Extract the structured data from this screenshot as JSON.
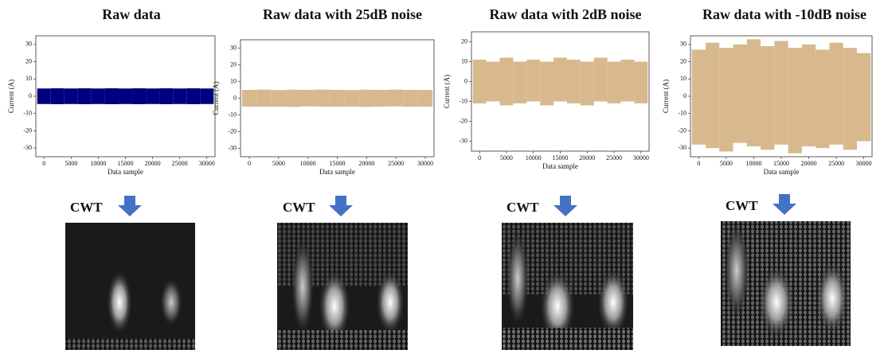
{
  "chart_data": [
    {
      "type": "range",
      "title": "Raw data",
      "xlabel": "Data sample",
      "ylabel": "Current (A)",
      "color": "#00007f",
      "x": [
        0,
        2500,
        5000,
        7500,
        10000,
        12500,
        15000,
        17500,
        20000,
        22500,
        25000,
        27500,
        30000
      ],
      "high": [
        4.5,
        4.6,
        4.5,
        4.6,
        4.5,
        4.6,
        4.5,
        4.6,
        4.5,
        4.6,
        4.5,
        4.6,
        4.5
      ],
      "low": [
        -4.5,
        -4.6,
        -4.5,
        -4.6,
        -4.5,
        -4.6,
        -4.5,
        -4.6,
        -4.5,
        -4.6,
        -4.5,
        -4.6,
        -4.5
      ],
      "xlim": [
        -1500,
        31500
      ],
      "xticks": [
        0,
        5000,
        10000,
        15000,
        20000,
        25000,
        30000
      ],
      "ylim": [
        -35,
        35
      ],
      "yticks": [
        -30,
        -20,
        -10,
        0,
        10,
        20,
        30
      ]
    },
    {
      "type": "range",
      "title": "Raw data with 25dB noise",
      "xlabel": "Data sample",
      "ylabel": "Current (A)",
      "color": "#d8b98e",
      "x": [
        0,
        2500,
        5000,
        7500,
        10000,
        12500,
        15000,
        17500,
        20000,
        22500,
        25000,
        27500,
        30000
      ],
      "high": [
        5,
        5.2,
        4.9,
        5.1,
        5,
        5.2,
        5,
        4.9,
        5.1,
        5,
        5.2,
        5,
        5
      ],
      "low": [
        -5,
        -5.1,
        -5,
        -5.2,
        -4.9,
        -5,
        -5.1,
        -5,
        -5.2,
        -5,
        -4.9,
        -5.1,
        -5
      ],
      "xlim": [
        -1500,
        31500
      ],
      "xticks": [
        0,
        5000,
        10000,
        15000,
        20000,
        25000,
        30000
      ],
      "ylim": [
        -35,
        35
      ],
      "yticks": [
        -30,
        -20,
        -10,
        0,
        10,
        20,
        30
      ]
    },
    {
      "type": "range",
      "title": "Raw data with 2dB noise",
      "xlabel": "Data sample",
      "ylabel": "Current (A)",
      "color": "#d8b98e",
      "x": [
        0,
        2500,
        5000,
        7500,
        10000,
        12500,
        15000,
        17500,
        20000,
        22500,
        25000,
        27500,
        30000
      ],
      "high": [
        11,
        10,
        12,
        10,
        11,
        10,
        12,
        11,
        10,
        12,
        10,
        11,
        10
      ],
      "low": [
        -11,
        -10,
        -12,
        -11,
        -10,
        -12,
        -10,
        -11,
        -12,
        -10,
        -11,
        -10,
        -11
      ],
      "xlim": [
        -1500,
        31500
      ],
      "xticks": [
        0,
        5000,
        10000,
        15000,
        20000,
        25000,
        30000
      ],
      "ylim": [
        -35,
        25
      ],
      "yticks": [
        -30,
        -20,
        -10,
        0,
        10,
        20
      ]
    },
    {
      "type": "range",
      "title": "Raw data with -10dB noise",
      "xlabel": "Data sample",
      "ylabel": "Current (A)",
      "color": "#d8b98e",
      "x": [
        0,
        2500,
        5000,
        7500,
        10000,
        12500,
        15000,
        17500,
        20000,
        22500,
        25000,
        27500,
        30000
      ],
      "high": [
        27,
        31,
        28,
        30,
        33,
        29,
        32,
        28,
        30,
        27,
        31,
        28,
        25
      ],
      "low": [
        -28,
        -30,
        -32,
        -27,
        -29,
        -31,
        -28,
        -33,
        -29,
        -30,
        -28,
        -31,
        -26
      ],
      "xlim": [
        -1500,
        31500
      ],
      "xticks": [
        0,
        5000,
        10000,
        15000,
        20000,
        25000,
        30000
      ],
      "ylim": [
        -35,
        35
      ],
      "yticks": [
        -30,
        -20,
        -10,
        0,
        10,
        20,
        30
      ]
    }
  ],
  "transform_labels": [
    "CWT",
    "CWT",
    "CWT",
    "CWT"
  ]
}
